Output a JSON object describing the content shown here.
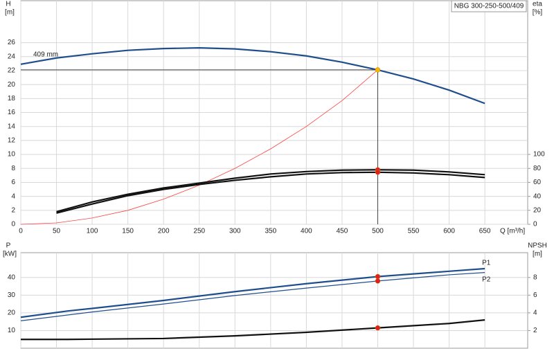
{
  "chart_data": [
    {
      "type": "line",
      "title": "NBG 300-250-500/409",
      "x_label": "Q [m³/h]",
      "y_label": "H",
      "y_unit": "[m]",
      "y2_label": "eta",
      "y2_unit": "[%]",
      "xlim": [
        0,
        710
      ],
      "xticks": [
        0,
        50,
        100,
        150,
        200,
        250,
        300,
        350,
        400,
        450,
        500,
        550,
        600,
        650
      ],
      "ylim": [
        0,
        32
      ],
      "yticks": [
        0,
        2,
        4,
        6,
        8,
        10,
        12,
        14,
        16,
        18,
        20,
        22,
        24,
        26
      ],
      "y2lim": [
        0,
        320
      ],
      "y2ticks": [
        0,
        20,
        40,
        60,
        80,
        100
      ],
      "grid": true,
      "show_xtick_labels": true,
      "operating_point": 500,
      "series": [
        {
          "name": "409 mm",
          "label_at": "start",
          "color": "#1f4e8c",
          "width": 2.2,
          "marker_color": "#f5b800",
          "guide": true,
          "x": [
            0,
            50,
            100,
            150,
            200,
            250,
            300,
            350,
            400,
            450,
            500,
            550,
            600,
            650
          ],
          "values": [
            22.9,
            23.8,
            24.4,
            24.9,
            25.15,
            25.25,
            25.1,
            24.7,
            24.1,
            23.2,
            22.1,
            20.8,
            19.2,
            17.3
          ]
        },
        {
          "color": "#ff4040",
          "width": 0.8,
          "x": [
            0,
            50,
            100,
            150,
            200,
            250,
            300,
            350,
            400,
            450,
            500
          ],
          "values": [
            0,
            0.2,
            0.9,
            2.0,
            3.6,
            5.6,
            8.0,
            10.8,
            14.0,
            17.7,
            22.1
          ]
        },
        {
          "color": "#111111",
          "width": 2.2,
          "axis": "y2",
          "marker_color": "#e02020",
          "x": [
            50,
            100,
            150,
            200,
            250,
            300,
            350,
            400,
            450,
            500,
            550,
            600,
            650
          ],
          "values": [
            18,
            32,
            43,
            52,
            59,
            66,
            72,
            75.5,
            77.5,
            78,
            77.5,
            75,
            71
          ]
        },
        {
          "color": "#111111",
          "width": 2.2,
          "axis": "y2",
          "marker_color": "#e02020",
          "x": [
            50,
            100,
            150,
            200,
            250,
            300,
            350,
            400,
            450,
            500,
            550,
            600,
            650
          ],
          "values": [
            16,
            29,
            41,
            50,
            57,
            63,
            68,
            72,
            74,
            74.5,
            73.5,
            71,
            67
          ]
        }
      ]
    },
    {
      "type": "line",
      "y_label": "P",
      "y_unit": "[kW]",
      "y2_label": "NPSH",
      "y2_unit": "[m]",
      "xlim": [
        0,
        710
      ],
      "xticks": [
        0,
        50,
        100,
        150,
        200,
        250,
        300,
        350,
        400,
        450,
        500,
        550,
        600,
        650
      ],
      "ylim": [
        0,
        54
      ],
      "yticks": [
        10,
        20,
        30,
        40
      ],
      "y2lim": [
        0,
        10.8
      ],
      "y2ticks": [
        2,
        4,
        6,
        8
      ],
      "grid": true,
      "show_xtick_labels": false,
      "operating_point": 500,
      "series": [
        {
          "name": "P1",
          "label_at": "end",
          "color": "#1f4e8c",
          "width": 2.2,
          "marker_color": "#e02020",
          "x": [
            0,
            65,
            100,
            200,
            300,
            400,
            500,
            600,
            650
          ],
          "values": [
            17.5,
            21,
            22.5,
            27,
            32,
            36.5,
            40.5,
            43.5,
            45
          ]
        },
        {
          "name": "P2",
          "label_at": "end",
          "color": "#1f4e8c",
          "width": 1.2,
          "marker_color": "#e02020",
          "x": [
            0,
            100,
            200,
            300,
            400,
            500,
            600,
            650
          ],
          "values": [
            15.5,
            20.5,
            25,
            29.8,
            34,
            38,
            41.5,
            42.8
          ]
        },
        {
          "color": "#111111",
          "width": 2.2,
          "axis": "y2",
          "marker_color": "#e02020",
          "x": [
            0,
            65,
            200,
            300,
            400,
            500,
            600,
            650
          ],
          "values": [
            1.0,
            1.0,
            1.1,
            1.4,
            1.8,
            2.3,
            2.8,
            3.2
          ]
        }
      ]
    }
  ]
}
